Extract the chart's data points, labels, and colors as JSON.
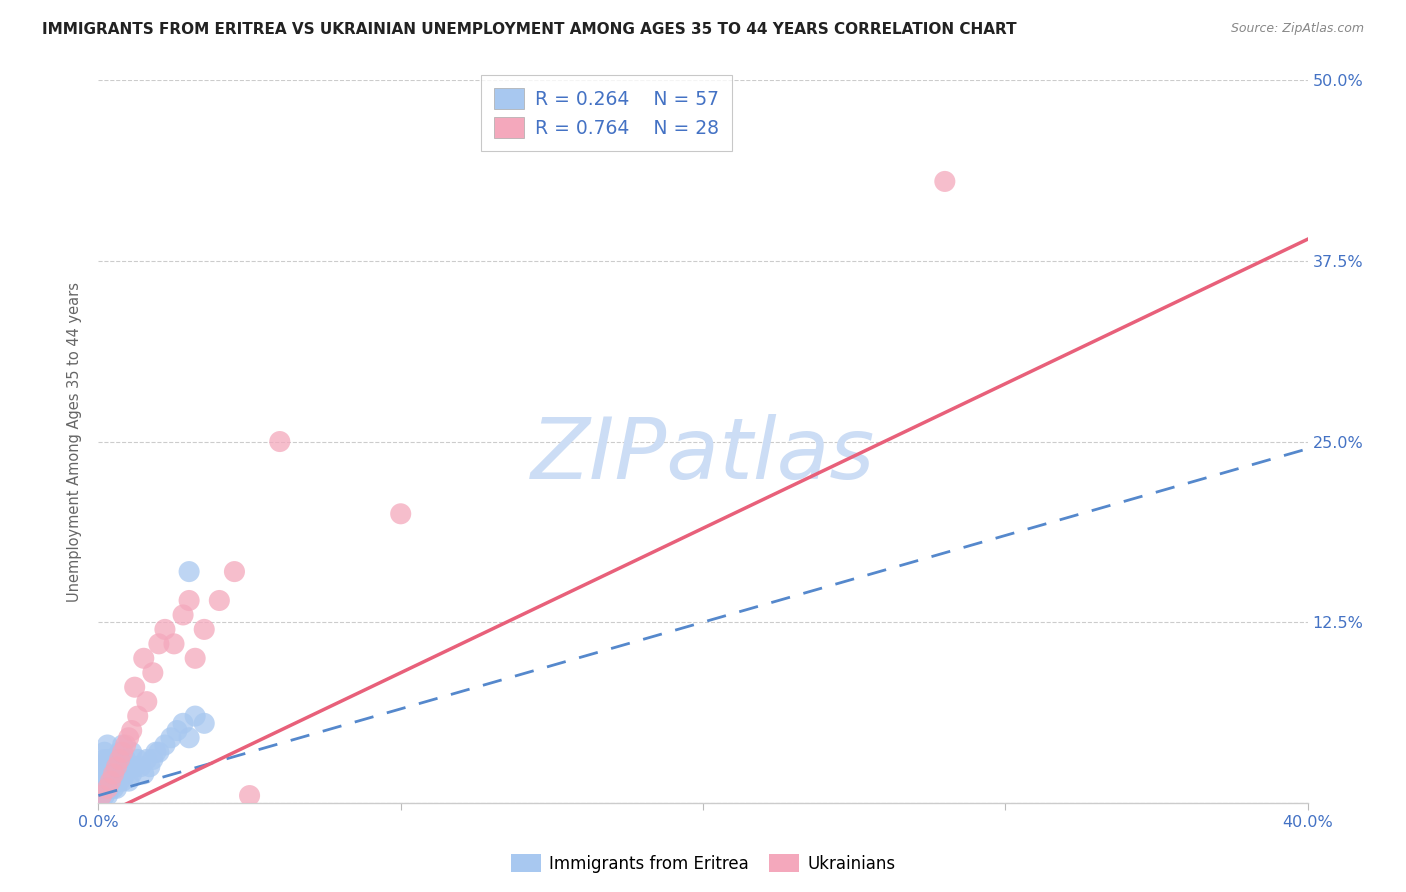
{
  "title": "IMMIGRANTS FROM ERITREA VS UKRAINIAN UNEMPLOYMENT AMONG AGES 35 TO 44 YEARS CORRELATION CHART",
  "source": "Source: ZipAtlas.com",
  "ylabel": "Unemployment Among Ages 35 to 44 years",
  "xlim": [
    0.0,
    0.4
  ],
  "ylim": [
    0.0,
    0.5
  ],
  "xtick_positions": [
    0.0,
    0.1,
    0.2,
    0.3,
    0.4
  ],
  "xtick_labels": [
    "0.0%",
    "",
    "",
    "",
    "40.0%"
  ],
  "ytick_positions": [
    0.0,
    0.125,
    0.25,
    0.375,
    0.5
  ],
  "ytick_labels": [
    "",
    "12.5%",
    "25.0%",
    "37.5%",
    "50.0%"
  ],
  "blue_R": "0.264",
  "blue_N": "57",
  "pink_R": "0.764",
  "pink_N": "28",
  "blue_scatter_color": "#a8c8f0",
  "pink_scatter_color": "#f4a8bc",
  "blue_line_color": "#5588cc",
  "pink_line_color": "#e8607a",
  "legend_label_blue": "Immigrants from Eritrea",
  "legend_label_pink": "Ukrainians",
  "watermark_text": "ZIPatlas",
  "watermark_color": "#ccddf5",
  "background_color": "#ffffff",
  "grid_color": "#cccccc",
  "title_color": "#222222",
  "axis_label_color": "#666666",
  "tick_color": "#4472c4",
  "source_color": "#888888",
  "blue_line_slope": 0.6,
  "blue_line_intercept": 0.005,
  "pink_line_slope": 1.0,
  "pink_line_intercept": -0.01,
  "blue_scatter_x": [
    0.001,
    0.001,
    0.001,
    0.001,
    0.001,
    0.002,
    0.002,
    0.002,
    0.002,
    0.002,
    0.002,
    0.002,
    0.003,
    0.003,
    0.003,
    0.003,
    0.003,
    0.003,
    0.004,
    0.004,
    0.004,
    0.004,
    0.005,
    0.005,
    0.005,
    0.006,
    0.006,
    0.006,
    0.007,
    0.007,
    0.007,
    0.008,
    0.008,
    0.008,
    0.009,
    0.009,
    0.01,
    0.01,
    0.011,
    0.011,
    0.012,
    0.013,
    0.014,
    0.015,
    0.016,
    0.017,
    0.018,
    0.019,
    0.02,
    0.022,
    0.024,
    0.026,
    0.028,
    0.03,
    0.032,
    0.035,
    0.03
  ],
  "blue_scatter_y": [
    0.005,
    0.01,
    0.015,
    0.02,
    0.025,
    0.005,
    0.01,
    0.015,
    0.02,
    0.025,
    0.03,
    0.035,
    0.005,
    0.01,
    0.015,
    0.02,
    0.03,
    0.04,
    0.01,
    0.015,
    0.02,
    0.03,
    0.01,
    0.02,
    0.03,
    0.01,
    0.02,
    0.03,
    0.015,
    0.025,
    0.035,
    0.015,
    0.025,
    0.04,
    0.02,
    0.03,
    0.015,
    0.025,
    0.02,
    0.035,
    0.025,
    0.03,
    0.025,
    0.02,
    0.03,
    0.025,
    0.03,
    0.035,
    0.035,
    0.04,
    0.045,
    0.05,
    0.055,
    0.045,
    0.06,
    0.055,
    0.16
  ],
  "pink_scatter_x": [
    0.001,
    0.003,
    0.004,
    0.005,
    0.006,
    0.007,
    0.008,
    0.009,
    0.01,
    0.011,
    0.012,
    0.013,
    0.015,
    0.016,
    0.018,
    0.02,
    0.022,
    0.025,
    0.028,
    0.03,
    0.032,
    0.035,
    0.04,
    0.045,
    0.05,
    0.06,
    0.1,
    0.28
  ],
  "pink_scatter_y": [
    0.005,
    0.01,
    0.015,
    0.02,
    0.025,
    0.03,
    0.035,
    0.04,
    0.045,
    0.05,
    0.08,
    0.06,
    0.1,
    0.07,
    0.09,
    0.11,
    0.12,
    0.11,
    0.13,
    0.14,
    0.1,
    0.12,
    0.14,
    0.16,
    0.005,
    0.25,
    0.2,
    0.43
  ]
}
